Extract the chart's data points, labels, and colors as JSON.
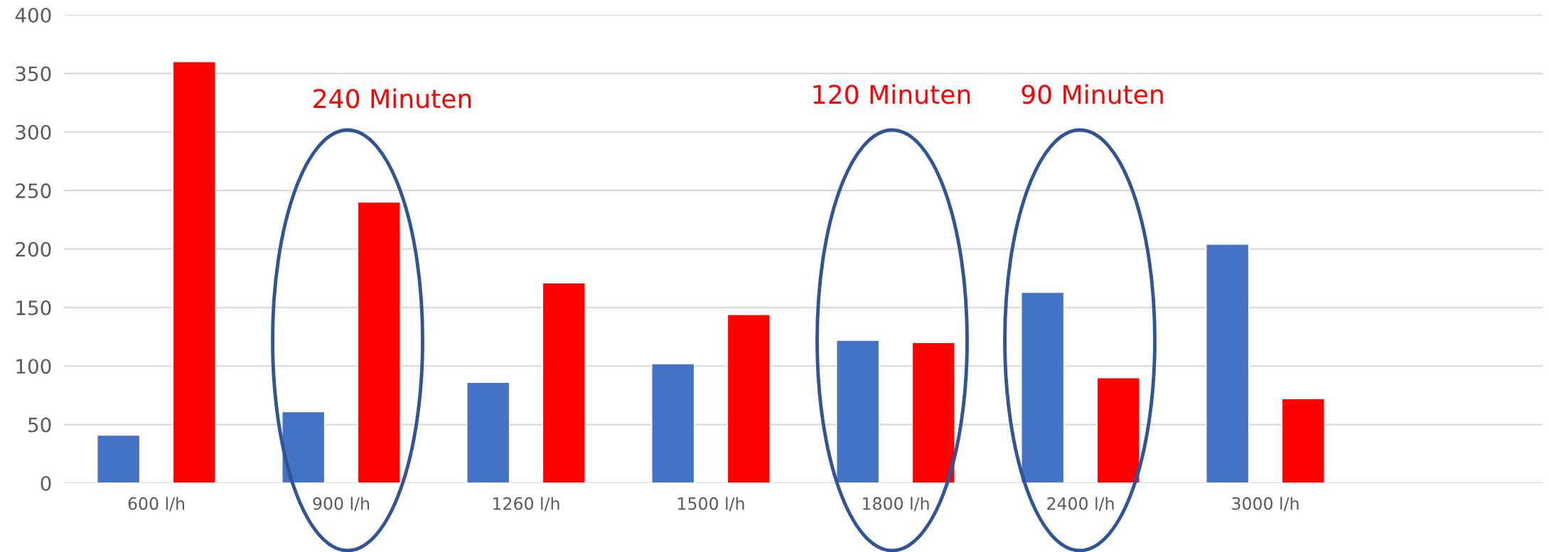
{
  "chart_data": {
    "type": "bar",
    "categories": [
      "600 l/h",
      "900 l/h",
      "1260 l/h",
      "1500 l/h",
      "1800 l/h",
      "2400 l/h",
      "3000 l/h",
      null
    ],
    "series": [
      {
        "color": "#4472c4",
        "values": [
          41,
          61,
          86,
          102,
          122,
          163,
          204,
          null
        ]
      },
      {
        "color": "#ff0000",
        "values": [
          360,
          240,
          171,
          144,
          120,
          90,
          72,
          null
        ]
      }
    ],
    "ylim": [
      0,
      400
    ],
    "yticks": [
      0,
      50,
      100,
      150,
      200,
      250,
      300,
      350,
      400
    ],
    "grid": "y",
    "legend": false,
    "annotations": [
      "240 Minuten",
      "120 Minuten",
      "90 Minuten"
    ]
  }
}
